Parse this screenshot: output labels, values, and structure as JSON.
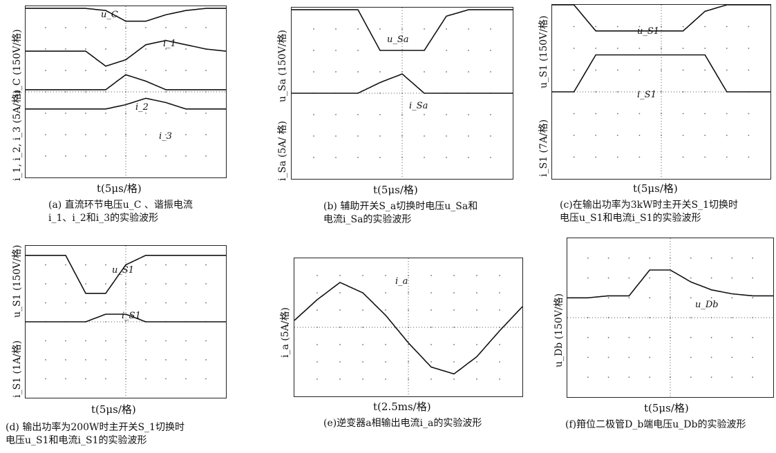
{
  "panels": [
    {
      "id": "a",
      "xlabel": "t(5μs/格)",
      "ylabels": [
        "u_C (150V/格)",
        "i_1, i_2, i_3 (5A/格)"
      ],
      "caption": [
        "(a) 直流环节电压u_C 、谐振电流",
        "i_1、i_2和i_3的实验波形"
      ],
      "traces": [
        "u_C",
        "i_1",
        "i_2",
        "i_3"
      ]
    },
    {
      "id": "b",
      "xlabel": "t(5μs/格)",
      "ylabels": [
        "u_Sa (150V/格)",
        "i_Sa (5A/ 格)"
      ],
      "caption": [
        "(b) 辅助开关S_a切换时电压u_Sa和",
        "电流i_Sa的实验波形"
      ],
      "traces": [
        "u_Sa",
        "i_Sa"
      ]
    },
    {
      "id": "c",
      "xlabel": "t(5μs/格)",
      "ylabels": [
        "u_S1 (150V/格)",
        "i_S1 (7A/格)"
      ],
      "caption": [
        "(c)在输出功率为3kW时主开关S_1切换时",
        "电压u_S1和电流i_S1的实验波形"
      ],
      "traces": [
        "u_S1",
        "i_S1"
      ]
    },
    {
      "id": "d",
      "xlabel": "t(5μs/格)",
      "ylabels": [
        "u_S1 (150V/格)",
        "i_S1 (1A/格)"
      ],
      "caption": [
        "(d) 输出功率为200W时主开关S_1切换时",
        "电压u_S1和电流i_S1的实验波形"
      ],
      "traces": [
        "u_S1",
        "i_S1"
      ]
    },
    {
      "id": "e",
      "xlabel": "t(2.5ms/格)",
      "ylabels": [
        "i_a (5A/格)"
      ],
      "caption": [
        "(e)逆变器a相输出电流i_a的实验波形"
      ],
      "traces": [
        "i_a"
      ]
    },
    {
      "id": "f",
      "xlabel": "t(5μs/格)",
      "ylabels": [
        "u_Db (150V/格)"
      ],
      "caption": [
        "(f)箝位二极管D_b端电压u_Db的实验波形"
      ],
      "traces": [
        "u_Db"
      ]
    }
  ],
  "chart_data": [
    {
      "type": "line",
      "id": "a",
      "x": [
        0,
        1,
        2,
        3,
        4,
        5,
        6,
        7,
        8,
        9,
        10
      ],
      "xlabel": "t(5μs/格)",
      "series": [
        {
          "name": "u_C",
          "values": [
            3.9,
            3.9,
            3.9,
            3.9,
            3.8,
            3.3,
            3.3,
            3.6,
            3.8,
            3.9,
            3.9
          ]
        },
        {
          "name": "i_1",
          "values": [
            1.9,
            1.9,
            1.9,
            1.9,
            1.2,
            1.5,
            2.2,
            2.4,
            2.2,
            2.0,
            1.9
          ]
        },
        {
          "name": "i_2",
          "values": [
            0.1,
            0.1,
            0.1,
            0.1,
            0.1,
            0.8,
            0.5,
            0.1,
            0.1,
            0.1,
            0.1
          ]
        },
        {
          "name": "i_3",
          "values": [
            -0.8,
            -0.8,
            -0.8,
            -0.8,
            -0.8,
            -0.6,
            -0.3,
            -0.5,
            -0.8,
            -0.8,
            -0.8
          ]
        }
      ]
    },
    {
      "type": "line",
      "id": "b",
      "x": [
        0,
        1,
        2,
        3,
        4,
        5,
        6,
        7,
        8,
        9,
        10
      ],
      "xlabel": "t(5μs/格)",
      "series": [
        {
          "name": "u_Sa",
          "values": [
            3.9,
            3.9,
            3.9,
            3.9,
            2.0,
            2.0,
            2.0,
            3.6,
            3.9,
            3.9,
            3.9
          ]
        },
        {
          "name": "i_Sa",
          "values": [
            0.0,
            0.0,
            0.0,
            0.0,
            0.5,
            0.9,
            0.0,
            0.0,
            0.0,
            0.0,
            0.0
          ]
        }
      ]
    },
    {
      "type": "line",
      "id": "c",
      "x": [
        0,
        1,
        2,
        3,
        4,
        5,
        6,
        7,
        8,
        9,
        10
      ],
      "xlabel": "t(5μs/格)",
      "series": [
        {
          "name": "u_S1",
          "values": [
            4.0,
            4.0,
            2.8,
            2.8,
            2.8,
            2.8,
            2.8,
            3.7,
            4.0,
            4.0,
            4.0
          ]
        },
        {
          "name": "i_S1",
          "values": [
            0.0,
            0.0,
            1.7,
            1.7,
            1.7,
            1.7,
            1.7,
            1.7,
            0.0,
            0.0,
            0.0
          ]
        }
      ]
    },
    {
      "type": "line",
      "id": "d",
      "x": [
        0,
        1,
        2,
        3,
        4,
        5,
        6,
        7,
        8,
        9,
        10
      ],
      "xlabel": "t(5μs/格)",
      "series": [
        {
          "name": "u_S1",
          "values": [
            3.5,
            3.5,
            3.5,
            1.5,
            1.5,
            3.0,
            3.5,
            3.5,
            3.5,
            3.5,
            3.5
          ]
        },
        {
          "name": "i_S1",
          "values": [
            0.0,
            0.0,
            0.0,
            0.0,
            0.4,
            0.4,
            0.0,
            0.0,
            0.0,
            0.0,
            0.0
          ]
        }
      ]
    },
    {
      "type": "line",
      "id": "e",
      "x": [
        0,
        1,
        2,
        3,
        4,
        5,
        6,
        7,
        8,
        9,
        10
      ],
      "xlabel": "t(2.5ms/格)",
      "series": [
        {
          "name": "i_a",
          "values": [
            0.4,
            1.6,
            2.6,
            2.0,
            0.7,
            -0.9,
            -2.3,
            -2.7,
            -1.7,
            -0.2,
            1.2
          ]
        }
      ]
    },
    {
      "type": "line",
      "id": "f",
      "x": [
        0,
        1,
        2,
        3,
        4,
        5,
        6,
        7,
        8,
        9,
        10
      ],
      "xlabel": "t(5μs/格)",
      "series": [
        {
          "name": "u_Db",
          "values": [
            1.0,
            1.0,
            1.1,
            1.1,
            2.4,
            2.4,
            1.8,
            1.4,
            1.2,
            1.1,
            1.1
          ]
        }
      ]
    }
  ]
}
